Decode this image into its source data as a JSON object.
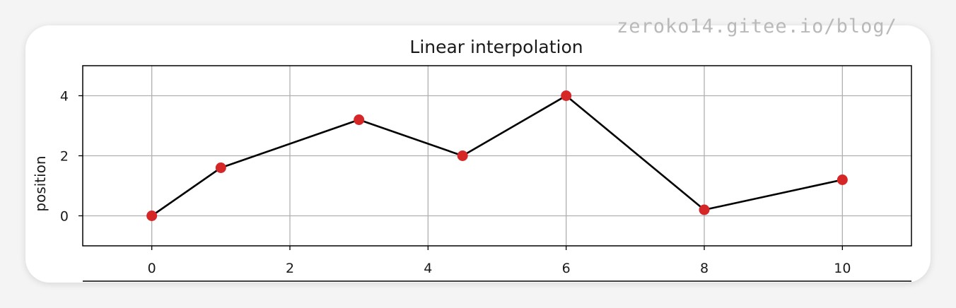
{
  "watermark": "zeroko14.gitee.io/blog/",
  "chart_data": {
    "type": "line",
    "title": "Linear interpolation",
    "xlabel": "",
    "ylabel": "position",
    "xlim": [
      -1,
      11
    ],
    "ylim": [
      -1,
      5
    ],
    "xticks": [
      0,
      2,
      4,
      6,
      8,
      10
    ],
    "yticks": [
      0,
      2,
      4
    ],
    "grid": true,
    "line_color": "#000000",
    "marker_color": "#d62728",
    "series": [
      {
        "x": [
          0,
          1,
          3,
          4.5,
          6,
          8,
          10
        ],
        "y": [
          0,
          1.6,
          3.2,
          2,
          4,
          0.2,
          1.2
        ]
      }
    ]
  }
}
